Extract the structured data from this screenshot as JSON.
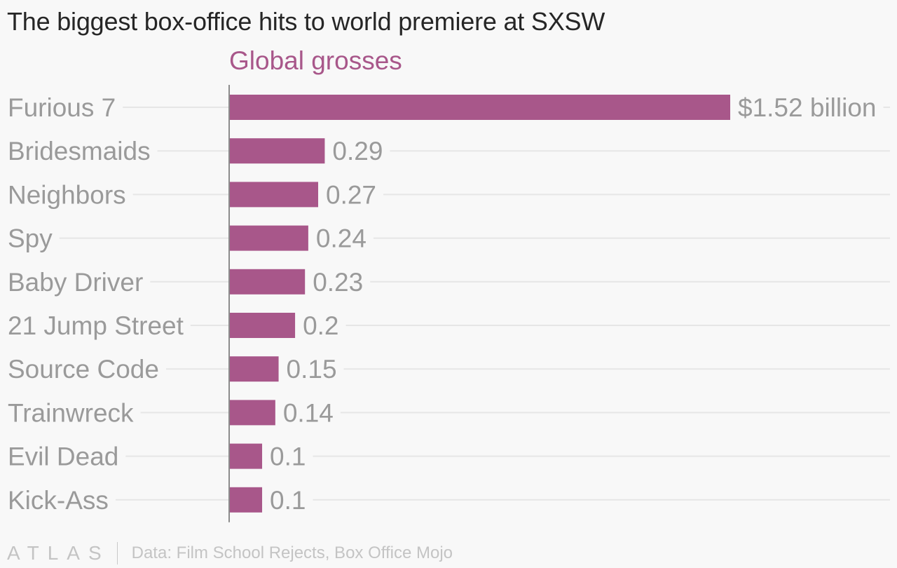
{
  "title": "The biggest box-office hits to world premiere at SXSW",
  "footer": {
    "logo": "ATLAS",
    "source": "Data: Film School Rejects, Box Office Mojo"
  },
  "colors": {
    "bar": "#a8578a",
    "category_label": "#9a9a9a",
    "value_label": "#9a9a9a",
    "gridline": "#e6e6e6",
    "axis": "#8c8c8c"
  },
  "chart_data": {
    "type": "bar",
    "orientation": "horizontal",
    "title": "The biggest box-office hits to world premiere at SXSW",
    "categories": [
      "Furious 7",
      "Bridesmaids",
      "Neighbors",
      "Spy",
      "Baby Driver",
      "21 Jump Street",
      "Source Code",
      "Trainwreck",
      "Evil Dead",
      "Kick-Ass"
    ],
    "series": [
      {
        "name": "Global grosses",
        "values": [
          1.52,
          0.29,
          0.27,
          0.24,
          0.23,
          0.2,
          0.15,
          0.14,
          0.1,
          0.1
        ],
        "labels": [
          "$1.52 billion",
          "0.29",
          "0.27",
          "0.24",
          "0.23",
          "0.2",
          "0.15",
          "0.14",
          "0.1",
          "0.1"
        ]
      }
    ],
    "xlim": [
      0,
      1.52
    ],
    "grid": true,
    "legend": "none"
  }
}
